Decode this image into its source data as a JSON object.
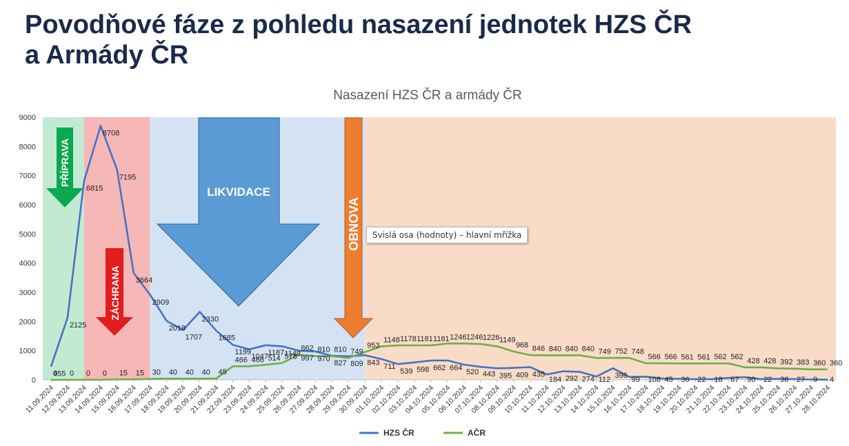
{
  "title": {
    "line1": "Povodňové fáze z pohledu nasazení jednotek HZS ČR",
    "line2": "a Armády ČR"
  },
  "tooltip": "Svislá osa (hodnoty)   – hlavní mřížka",
  "colors": {
    "title": "#1a2a4a",
    "hzs": "#4472c4",
    "acr": "#70ad47",
    "priprava_bg": "#c2ead3",
    "zachrana_bg": "#f6b7b7",
    "likvidace_bg": "#d4e3f3",
    "obnova_bg": "#f9dcc8",
    "priprava_arrow": "#0aa84f",
    "zachrana_arrow": "#e21d1d",
    "likvidace_arrow": "#5b9bd5",
    "obnova_arrow": "#ed7d31"
  },
  "chart_data": {
    "type": "line",
    "title": "Nasazení HZS ČR a armády ČR",
    "xlabel": "",
    "ylabel": "",
    "ylim": [
      0,
      9000
    ],
    "yticks": [
      0,
      1000,
      2000,
      3000,
      4000,
      5000,
      6000,
      7000,
      8000,
      9000
    ],
    "grid": false,
    "legend_position": "bottom",
    "categories": [
      "11.09.2024",
      "12.09.2024",
      "13.09.2024",
      "14.09.2024",
      "15.09.2024",
      "16.09.2024",
      "17.09.2024",
      "18.09.2024",
      "19.09.2024",
      "20.09.2024",
      "21.09.2024",
      "22.09.2024",
      "23.09.2024",
      "24.09.2024",
      "25.09.2024",
      "26.09.2024",
      "27.09.2024",
      "28.09.2024",
      "29.09.2024",
      "30.09.2024",
      "01.10.2024",
      "02.10.2024",
      "03.10.2024",
      "04.10.2024",
      "05.10.2024",
      "06.10.2024",
      "07.10.2024",
      "08.10.2024",
      "09.10.2024",
      "10.10.2024",
      "11.10.2024",
      "12.10.2024",
      "13.10.2024",
      "14.10.2024",
      "15.10.2024",
      "16.10.2024",
      "17.10.2024",
      "18.10.2024",
      "19.10.2024",
      "20.10.2024",
      "21.10.2024",
      "22.10.2024",
      "23.10.2024",
      "24.10.2024",
      "25.10.2024",
      "26.10.2024",
      "27.10.2024",
      "28.10.2024"
    ],
    "series": [
      {
        "name": "HZS ČR",
        "color": "#4472c4",
        "values": [
          455,
          2125,
          6815,
          8708,
          7195,
          3664,
          2909,
          2018,
          1707,
          2330,
          1685,
          1199,
          1047,
          1187,
          1148,
          997,
          970,
          827,
          809,
          843,
          711,
          539,
          598,
          662,
          664,
          520,
          443,
          395,
          409,
          435,
          184,
          292,
          274,
          112,
          396,
          99,
          108,
          45,
          36,
          22,
          18,
          67,
          90,
          22,
          36,
          27,
          9,
          4
        ]
      },
      {
        "name": "AČR",
        "color": "#70ad47",
        "values": [
          0,
          0,
          0,
          0,
          15,
          15,
          30,
          40,
          40,
          40,
          45,
          466,
          466,
          514,
          578,
          862,
          810,
          810,
          749,
          953,
          1148,
          1178,
          1181,
          1181,
          1246,
          1246,
          1226,
          1149,
          968,
          846,
          840,
          840,
          840,
          749,
          752,
          748,
          566,
          566,
          561,
          561,
          562,
          562,
          428,
          428,
          392,
          383,
          360,
          360
        ]
      }
    ],
    "phases": [
      {
        "label": "PŘÍPRAVA",
        "from": "11.09.2024",
        "to": "13.09.2024"
      },
      {
        "label": "ZÁCHRANA",
        "from": "13.09.2024",
        "to": "17.09.2024"
      },
      {
        "label": "LIKVIDACE",
        "from": "17.09.2024",
        "to": "30.09.2024"
      },
      {
        "label": "OBNOVA",
        "from": "30.09.2024",
        "to": "28.10.2024"
      }
    ]
  }
}
